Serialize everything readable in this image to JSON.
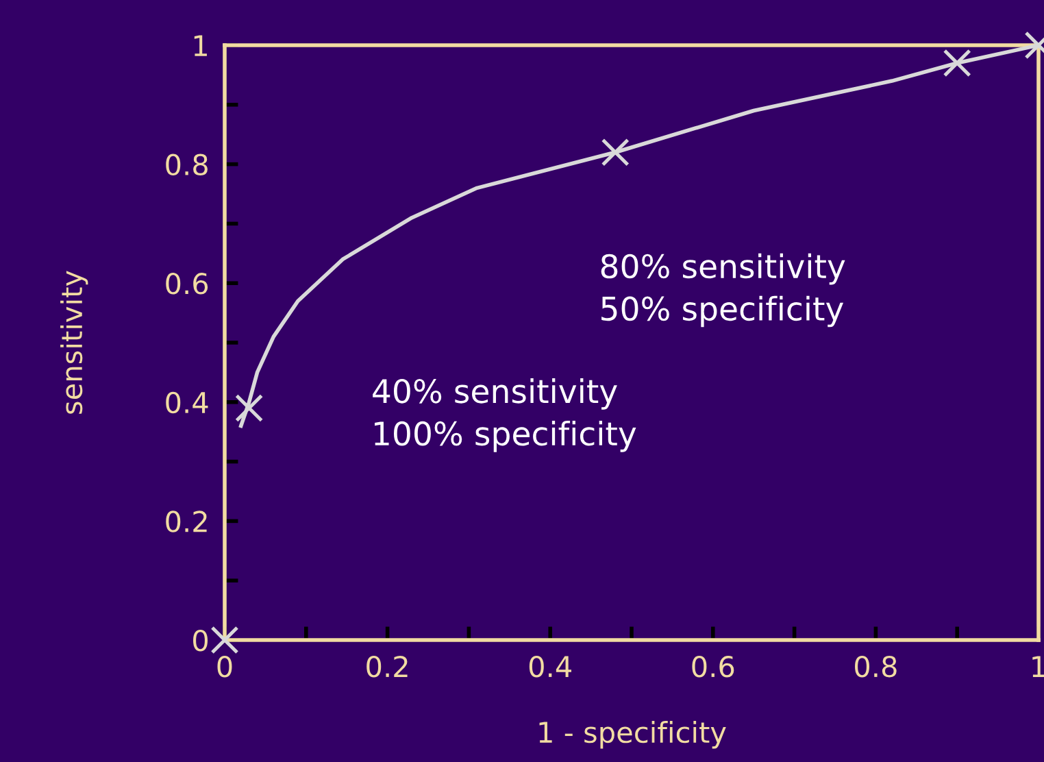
{
  "chart_data": {
    "type": "line",
    "xlabel": "1 - specificity",
    "ylabel": "sensitivity",
    "series": [
      {
        "color": "#d9d9d9",
        "marker": "none",
        "x": [
          0.02,
          0.03,
          0.04,
          0.06,
          0.09,
          0.145,
          0.23,
          0.31,
          0.48,
          0.65,
          0.82,
          0.9,
          1
        ],
        "values": [
          0.36,
          0.4,
          0.45,
          0.51,
          0.57,
          0.64,
          0.71,
          0.76,
          0.82,
          0.89,
          0.94,
          0.97,
          1
        ]
      },
      {
        "type": "scatter",
        "color": "#d9d9d9",
        "marker": "cross",
        "x": [
          0,
          0.03,
          0.48,
          0.9,
          1
        ],
        "values": [
          0,
          0.39,
          0.82,
          0.97,
          1
        ]
      }
    ],
    "xlim": [
      0,
      1
    ],
    "ylim": [
      0,
      1
    ],
    "xticks": [
      0,
      {
        "value": 0.1,
        "label": null
      },
      0.2,
      {
        "value": 0.3,
        "label": null
      },
      0.4,
      {
        "value": 0.5,
        "label": null
      },
      0.6,
      {
        "value": 0.7,
        "label": null
      },
      0.8,
      {
        "value": 0.9,
        "label": null
      },
      1
    ],
    "yticks": [
      0,
      {
        "value": 0.1,
        "label": null
      },
      0.2,
      {
        "value": 0.3,
        "label": null
      },
      0.4,
      {
        "value": 0.5,
        "label": null
      },
      0.6,
      {
        "value": 0.7,
        "label": null
      },
      0.8,
      {
        "value": 0.9,
        "label": null
      },
      1
    ],
    "annotations": [
      "40% sensitivity\n100% specificity",
      "80% sensitivity\n50% specificity"
    ],
    "grid": false,
    "legend": false
  }
}
